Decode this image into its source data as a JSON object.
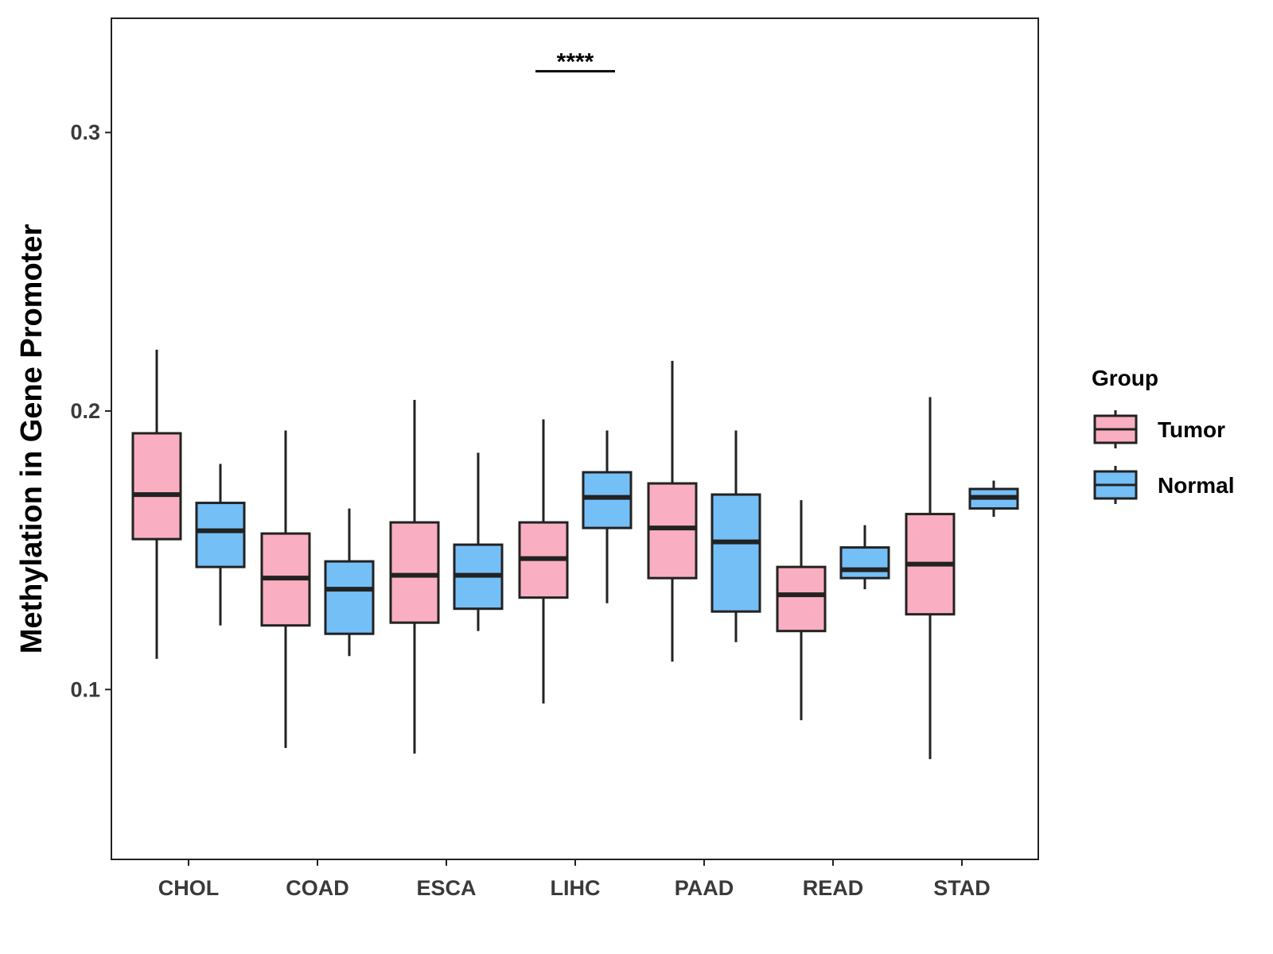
{
  "chart_data": {
    "type": "boxplot",
    "title": "",
    "xlabel": "",
    "ylabel": "Methylation in Gene Promoter",
    "ylim": [
      0.039,
      0.341
    ],
    "yticks": [
      0.1,
      0.2,
      0.3
    ],
    "ytick_labels": [
      "0.1",
      "0.2",
      "0.3"
    ],
    "categories": [
      "CHOL",
      "COAD",
      "ESCA",
      "LIHC",
      "PAAD",
      "READ",
      "STAD"
    ],
    "legend": {
      "title": "Group",
      "position": "right",
      "entries": [
        "Tumor",
        "Normal"
      ]
    },
    "series": [
      {
        "name": "Tumor",
        "color": "#F9AFC1",
        "boxes": [
          {
            "category": "CHOL",
            "min": 0.111,
            "q1": 0.154,
            "median": 0.17,
            "q3": 0.192,
            "max": 0.222
          },
          {
            "category": "COAD",
            "min": 0.079,
            "q1": 0.123,
            "median": 0.14,
            "q3": 0.156,
            "max": 0.193
          },
          {
            "category": "ESCA",
            "min": 0.077,
            "q1": 0.124,
            "median": 0.141,
            "q3": 0.16,
            "max": 0.204
          },
          {
            "category": "LIHC",
            "min": 0.095,
            "q1": 0.133,
            "median": 0.147,
            "q3": 0.16,
            "max": 0.197
          },
          {
            "category": "PAAD",
            "min": 0.11,
            "q1": 0.14,
            "median": 0.158,
            "q3": 0.174,
            "max": 0.218
          },
          {
            "category": "READ",
            "min": 0.089,
            "q1": 0.121,
            "median": 0.134,
            "q3": 0.144,
            "max": 0.168
          },
          {
            "category": "STAD",
            "min": 0.075,
            "q1": 0.127,
            "median": 0.145,
            "q3": 0.163,
            "max": 0.205
          }
        ]
      },
      {
        "name": "Normal",
        "color": "#75BFF7",
        "boxes": [
          {
            "category": "CHOL",
            "min": 0.123,
            "q1": 0.144,
            "median": 0.157,
            "q3": 0.167,
            "max": 0.181
          },
          {
            "category": "COAD",
            "min": 0.112,
            "q1": 0.12,
            "median": 0.136,
            "q3": 0.146,
            "max": 0.165
          },
          {
            "category": "ESCA",
            "min": 0.121,
            "q1": 0.129,
            "median": 0.141,
            "q3": 0.152,
            "max": 0.185
          },
          {
            "category": "LIHC",
            "min": 0.131,
            "q1": 0.158,
            "median": 0.169,
            "q3": 0.178,
            "max": 0.193
          },
          {
            "category": "PAAD",
            "min": 0.117,
            "q1": 0.128,
            "median": 0.153,
            "q3": 0.17,
            "max": 0.193
          },
          {
            "category": "READ",
            "min": 0.136,
            "q1": 0.14,
            "median": 0.143,
            "q3": 0.151,
            "max": 0.159
          },
          {
            "category": "STAD",
            "min": 0.162,
            "q1": 0.165,
            "median": 0.169,
            "q3": 0.172,
            "max": 0.175
          }
        ]
      }
    ],
    "annotations": [
      {
        "category": "LIHC",
        "text": "****",
        "y": 0.322
      }
    ]
  }
}
